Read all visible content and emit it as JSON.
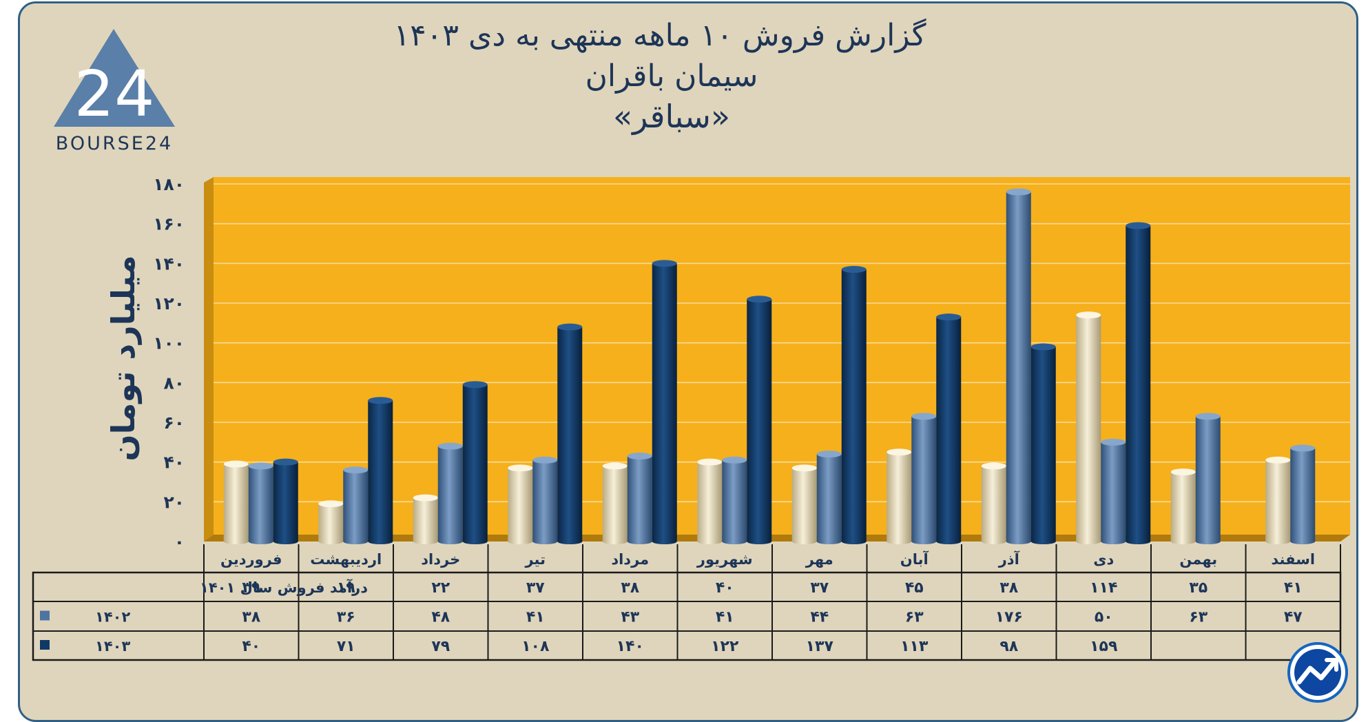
{
  "logo": {
    "brand_text": "BOURSE24",
    "number_text": "24"
  },
  "title": {
    "line1": "گزارش  فروش ۱۰ ماهه منتهی به دی ۱۴۰۳",
    "line2": "سیمان باقران",
    "line3": "«سباقر»"
  },
  "colors": {
    "background": "#dfd5bc",
    "plot_area": "#f5b01c",
    "plot_wall": "#c98d10",
    "series_1401": "#e8dcb8",
    "series_1402": "#4e74a0",
    "series_1403": "#0f3a66",
    "text": "#1d3557"
  },
  "chart_data": {
    "type": "bar",
    "title": "گزارش  فروش ۱۰ ماهه منتهی به دی ۱۴۰۳",
    "subtitle": "سیمان باقران «سباقر»",
    "ylabel": "میلیارد تومان",
    "ylim": [
      0,
      180
    ],
    "yticks": [
      "۰",
      "۲۰",
      "۴۰",
      "۶۰",
      "۸۰",
      "۱۰۰",
      "۱۲۰",
      "۱۴۰",
      "۱۶۰",
      "۱۸۰"
    ],
    "ytick_values": [
      0,
      20,
      40,
      60,
      80,
      100,
      120,
      140,
      160,
      180
    ],
    "categories": [
      "فروردین",
      "اردیبهشت",
      "خرداد",
      "تیر",
      "مرداد",
      "شهریور",
      "مهر",
      "آبان",
      "آذر",
      "دی",
      "بهمن",
      "اسفند"
    ],
    "grid": true,
    "legend": "data-table",
    "series": [
      {
        "name": "درآمد فروش سال ۱۴۰۱",
        "values": [
          39,
          19,
          22,
          37,
          38,
          40,
          37,
          45,
          38,
          114,
          35,
          41
        ],
        "labels": [
          "۳۹",
          "۱۹",
          "۲۲",
          "۳۷",
          "۳۸",
          "۴۰",
          "۳۷",
          "۴۵",
          "۳۸",
          "۱۱۴",
          "۳۵",
          "۴۱"
        ]
      },
      {
        "name": "۱۴۰۲",
        "values": [
          38,
          36,
          48,
          41,
          43,
          41,
          44,
          63,
          176,
          50,
          63,
          47
        ],
        "labels": [
          "۳۸",
          "۳۶",
          "۴۸",
          "۴۱",
          "۴۳",
          "۴۱",
          "۴۴",
          "۶۳",
          "۱۷۶",
          "۵۰",
          "۶۳",
          "۴۷"
        ]
      },
      {
        "name": "۱۴۰۳",
        "values": [
          40,
          71,
          79,
          108,
          140,
          122,
          137,
          113,
          98,
          159,
          null,
          null
        ],
        "labels": [
          "۴۰",
          "۷۱",
          "۷۹",
          "۱۰۸",
          "۱۴۰",
          "۱۲۲",
          "۱۳۷",
          "۱۱۳",
          "۹۸",
          "۱۵۹",
          "",
          ""
        ]
      }
    ]
  }
}
